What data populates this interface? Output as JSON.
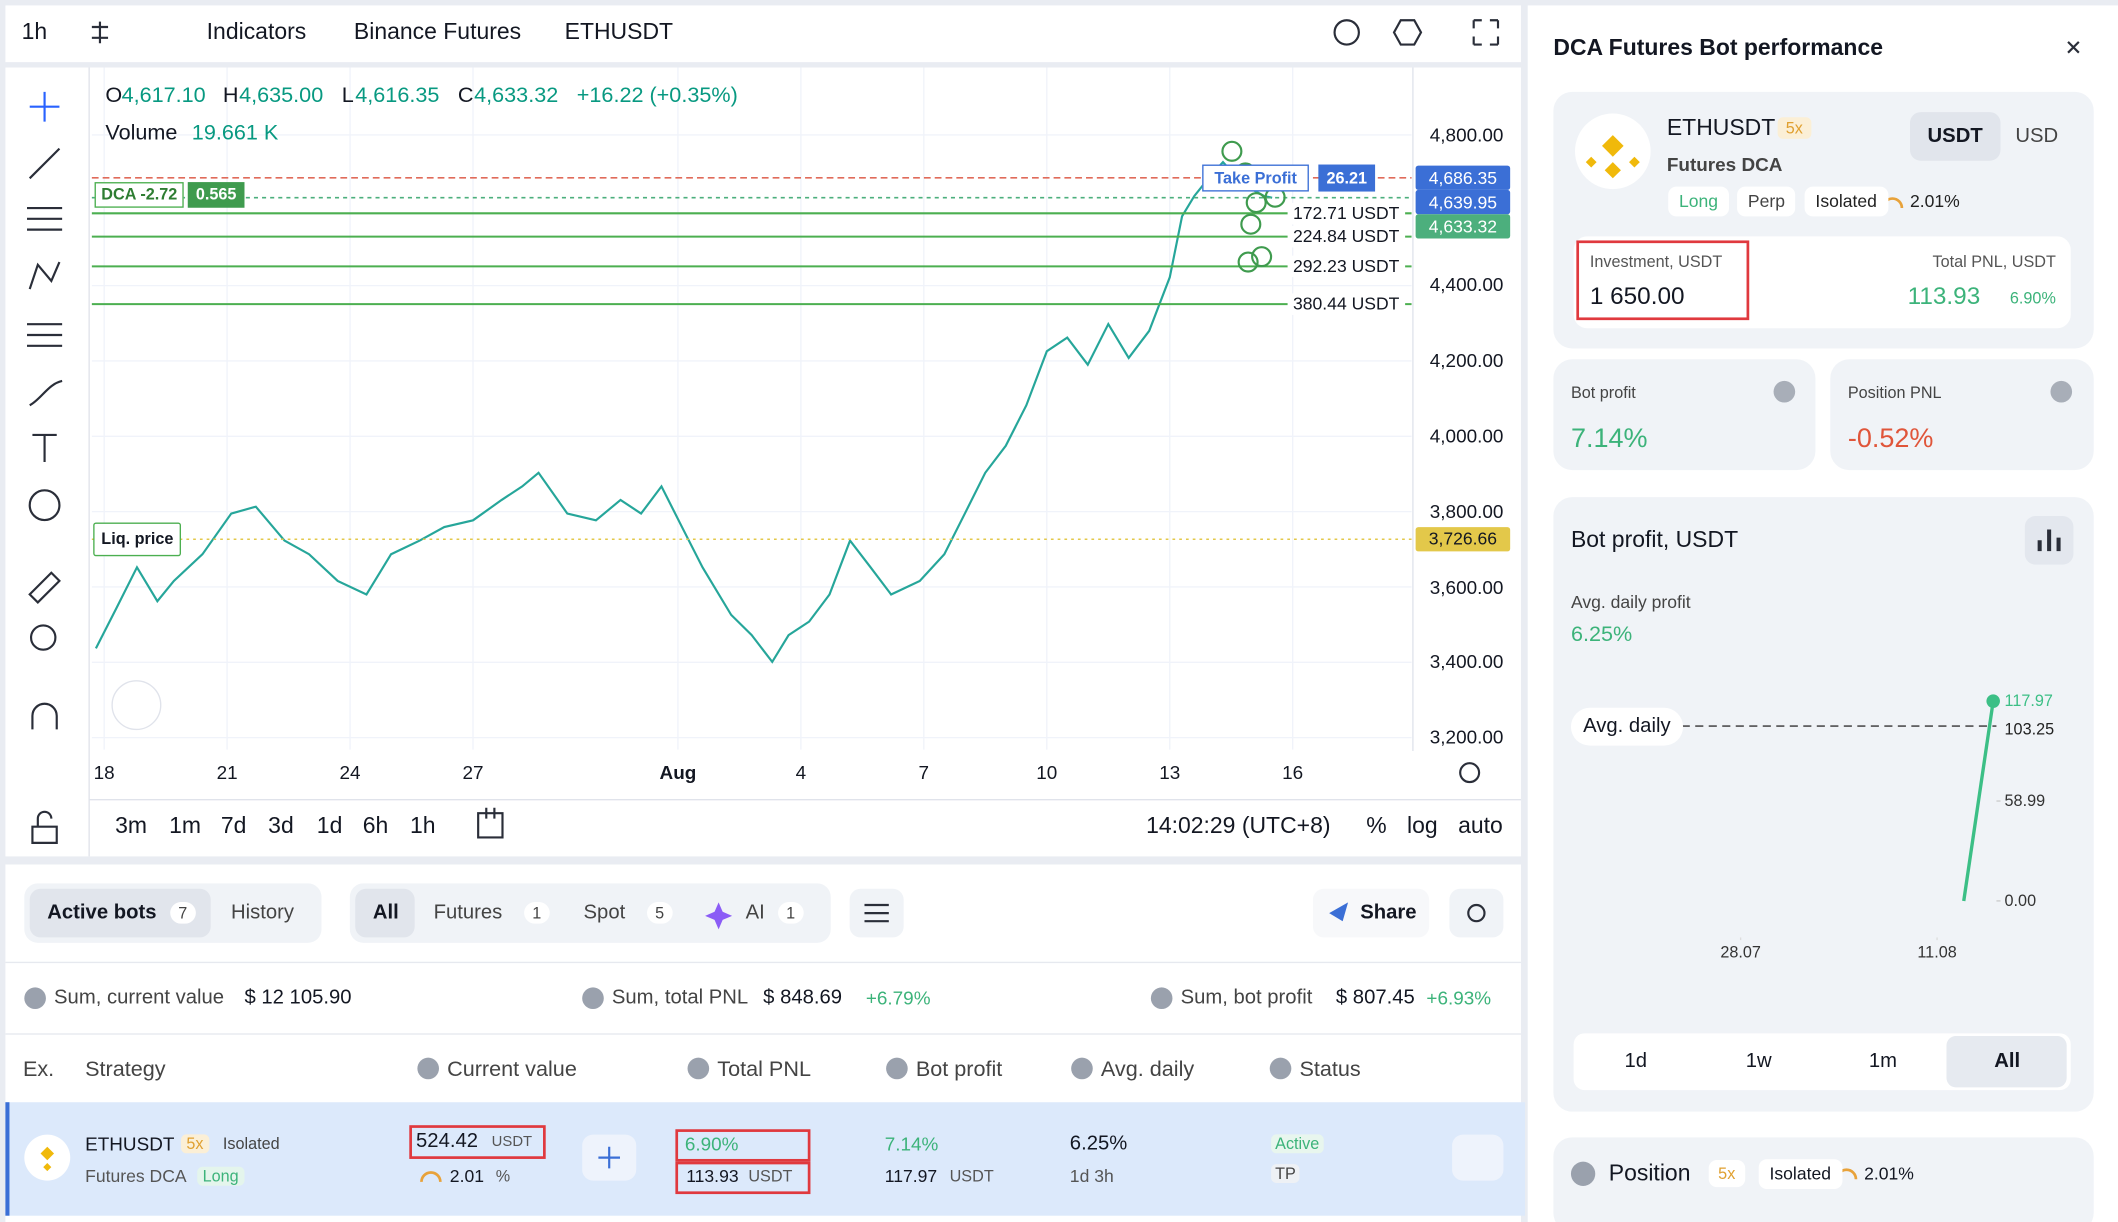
{
  "chart_data": [
    {
      "type": "line",
      "color": "#26a69a",
      "x": [
        -0.2,
        0.3,
        0.8,
        1.3,
        1.7,
        2.4,
        3.1,
        3.7,
        4.4,
        5.0,
        5.7,
        6.4,
        7.0,
        7.7,
        8.3,
        9.0,
        9.7,
        10.2,
        10.6,
        11.3,
        12.0,
        12.6,
        13.1,
        13.6,
        14.1,
        14.6,
        15.3,
        15.8,
        16.3,
        16.7,
        17.2,
        17.7,
        18.2,
        18.7,
        19.2,
        19.9,
        20.5,
        21.0,
        21.5,
        22.0,
        22.5,
        23.0,
        23.5,
        24.0,
        24.5,
        25.0,
        25.5,
        26.0,
        26.3,
        26.6,
        27.0,
        27.3,
        27.6,
        28.0,
        28.3,
        28.5
      ],
      "values": [
        3437,
        3544,
        3652,
        3562,
        3616,
        3687,
        3795,
        3813,
        3723,
        3687,
        3616,
        3580,
        3687,
        3723,
        3759,
        3777,
        3831,
        3867,
        3903,
        3795,
        3777,
        3831,
        3795,
        3867,
        3759,
        3652,
        3526,
        3472,
        3401,
        3472,
        3508,
        3580,
        3723,
        3652,
        3580,
        3616,
        3687,
        3795,
        3903,
        3975,
        4082,
        4226,
        4262,
        4190,
        4298,
        4208,
        4280,
        4422,
        4584,
        4638,
        4692,
        4728,
        4692,
        4656,
        4638,
        4633.32
      ],
      "xlim": [
        -0.3,
        31.9
      ],
      "ylim": [
        3168,
        4979
      ],
      "xticks": [
        {
          "value": 0,
          "label": "18"
        },
        {
          "value": 3,
          "label": "21"
        },
        {
          "value": 6,
          "label": "24"
        },
        {
          "value": 9,
          "label": "27"
        },
        {
          "value": 14,
          "label": "Aug"
        },
        {
          "value": 17,
          "label": "4"
        },
        {
          "value": 20,
          "label": "7"
        },
        {
          "value": 23,
          "label": "10"
        },
        {
          "value": 26,
          "label": "13"
        },
        {
          "value": 29,
          "label": "16"
        }
      ],
      "yticks": [
        {
          "value": 4800,
          "label": "4,800.00"
        },
        {
          "value": 4400,
          "label": "4,400.00"
        },
        {
          "value": 4200,
          "label": "4,200.00"
        },
        {
          "value": 4000,
          "label": "4,000.00"
        },
        {
          "value": 3800,
          "label": "3,800.00"
        },
        {
          "value": 3600,
          "label": "3,600.00"
        },
        {
          "value": 3400,
          "label": "3,400.00"
        },
        {
          "value": 3200,
          "label": "3,200.00"
        }
      ],
      "grid": true,
      "price_tags": [
        {
          "value": 4686.35,
          "label": "4,686.35",
          "color": "#3b6fd6"
        },
        {
          "value": 4639.95,
          "label": "4,639.95",
          "color": "#3b6fd6"
        },
        {
          "value": 4633.32,
          "label": "4,633.32",
          "color": "#4caf7d"
        },
        {
          "value": 3726.66,
          "label": "3,726.66",
          "color": "#e3c84a"
        }
      ],
      "orders": [
        {
          "price": 4592,
          "amount": "172.71 USDT"
        },
        {
          "price": 4530,
          "amount": "224.84 USDT"
        },
        {
          "price": 4451,
          "amount": "292.23 USDT"
        },
        {
          "price": 4351,
          "amount": "380.44 USDT"
        }
      ],
      "take_profit_label": "Take Profit",
      "take_profit_value": "26.21",
      "dca_label": "DCA -2.72",
      "dca_value": "0.565",
      "liq_label": "Liq. price"
    },
    {
      "type": "line",
      "title": "Bot profit, USDT",
      "color": "#3cbf86",
      "x": [
        15.9,
        18.0
      ],
      "values": [
        0,
        117.97
      ],
      "xlim": [
        -11.9,
        24.2
      ],
      "ylim": [
        -10.4,
        133.2
      ],
      "xticks": [
        {
          "value": 0,
          "label": "28.07"
        },
        {
          "value": 14,
          "label": "11.08"
        }
      ],
      "yticks": [
        {
          "value": 0,
          "label": "0.00"
        },
        {
          "value": 58.99,
          "label": "58.99"
        }
      ],
      "avg_label": "Avg. daily",
      "avg": {
        "value": 103.25,
        "label": "103.25"
      }
    }
  ],
  "ui": {
    "toolbar": {
      "interval": "1h",
      "indicators": "Indicators",
      "exchange": "Binance Futures",
      "symbol": "ETHUSDT"
    },
    "legend": {
      "o": "O",
      "o_v": "4,617.10",
      "h": "H",
      "h_v": "4,635.00",
      "l": "L",
      "l_v": "4,616.35",
      "c": "C",
      "c_v": "4,633.32",
      "change": "+16.22 (+0.35%)",
      "volume": "Volume",
      "volume_v": "19.661 K"
    },
    "ranges": [
      "3m",
      "1m",
      "7d",
      "3d",
      "1d",
      "6h",
      "1h"
    ],
    "clock": "14:02:29 (UTC+8)",
    "scale": [
      "%",
      "log",
      "auto"
    ],
    "tabs": {
      "active": "Active bots",
      "active_n": "7",
      "history": "History",
      "all": "All",
      "futures": "Futures",
      "futures_n": "1",
      "spot": "Spot",
      "spot_n": "5",
      "ai": "AI",
      "ai_n": "1",
      "share": "Share"
    },
    "summary": [
      {
        "label": "Sum, current value",
        "value": "$ 12 105.90"
      },
      {
        "label": "Sum, total PNL",
        "value": "$ 848.69",
        "change": "+6.79%"
      },
      {
        "label": "Sum, bot profit",
        "value": "$ 807.45",
        "change": "+6.93%"
      }
    ],
    "columns": [
      "Ex.",
      "Strategy",
      "Current value",
      "Total PNL",
      "Bot profit",
      "Avg. daily",
      "Status"
    ],
    "row": {
      "pair": "ETHUSDT",
      "leverage": "5x",
      "margin": "Isolated",
      "kind": "Futures DCA",
      "side": "Long",
      "value": "524.42",
      "value_unit": "USDT",
      "risk": "2.01",
      "risk_unit": "%",
      "pnl_pct": "6.90%",
      "pnl": "113.93",
      "pnl_unit": "USDT",
      "profit_pct": "7.14%",
      "profit": "117.97",
      "profit_unit": "USDT",
      "daily": "6.25%",
      "age": "1d 3h",
      "status": "Active",
      "tag": "TP"
    },
    "panel": {
      "title": "DCA Futures Bot performance",
      "pair": "ETHUSDT",
      "leverage": "5x",
      "kind": "Futures DCA",
      "side": "Long",
      "contract": "Perp",
      "margin": "Isolated",
      "risk": "2.01%",
      "currencies": [
        "USDT",
        "USD"
      ],
      "investment_label": "Investment, USDT",
      "investment": "1 650.00",
      "pnl_label": "Total PNL, USDT",
      "pnl": "113.93",
      "pnl_pct": "6.90%",
      "bot_profit_label": "Bot profit",
      "bot_profit": "7.14%",
      "position_pnl_label": "Position PNL",
      "position_pnl": "-0.52%",
      "avg_label": "Avg. daily profit",
      "avg": "6.25%",
      "periods": [
        "1d",
        "1w",
        "1m",
        "All"
      ],
      "position": "Position",
      "position_leverage": "5x",
      "position_margin": "Isolated",
      "position_risk": "2.01%"
    }
  }
}
